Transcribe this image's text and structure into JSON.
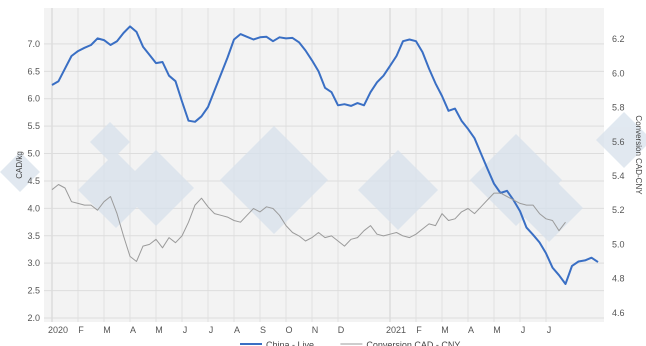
{
  "chart_data": {
    "type": "line",
    "title": "",
    "x_tick_labels": [
      "2020",
      "F",
      "M",
      "A",
      "M",
      "J",
      "J",
      "A",
      "S",
      "O",
      "N",
      "D",
      "2021",
      "F",
      "M",
      "A",
      "M",
      "J",
      "J"
    ],
    "x_range": [
      "2020-01",
      "2021-07"
    ],
    "y_left": {
      "label": "CAD/kg",
      "ticks": [
        "2.0",
        "2.5",
        "3.0",
        "3.5",
        "4.0",
        "4.5",
        "5.0",
        "5.5",
        "6.0",
        "6.5",
        "7.0"
      ],
      "range": [
        2.0,
        7.4
      ]
    },
    "y_right": {
      "label": "Conversion CAD-CNY",
      "ticks": [
        "4.6",
        "4.8",
        "5.0",
        "5.2",
        "5.4",
        "5.6",
        "5.8",
        "6.0",
        "6.2"
      ],
      "range": [
        4.57,
        6.3
      ]
    },
    "grid": true,
    "legend_placement": "bottom",
    "series": [
      {
        "name": "China - Live",
        "axis": "left",
        "color": "#3a6fc4",
        "points": [
          [
            0.0,
            6.25
          ],
          [
            0.25,
            6.32
          ],
          [
            0.5,
            6.55
          ],
          [
            0.75,
            6.78
          ],
          [
            1.0,
            6.87
          ],
          [
            1.25,
            6.93
          ],
          [
            1.5,
            6.98
          ],
          [
            1.75,
            7.1
          ],
          [
            2.0,
            7.07
          ],
          [
            2.25,
            6.98
          ],
          [
            2.5,
            7.05
          ],
          [
            2.75,
            7.2
          ],
          [
            3.0,
            7.32
          ],
          [
            3.25,
            7.22
          ],
          [
            3.5,
            6.95
          ],
          [
            3.75,
            6.8
          ],
          [
            4.0,
            6.65
          ],
          [
            4.25,
            6.67
          ],
          [
            4.5,
            6.42
          ],
          [
            4.75,
            6.32
          ],
          [
            5.0,
            5.95
          ],
          [
            5.25,
            5.6
          ],
          [
            5.5,
            5.58
          ],
          [
            5.75,
            5.68
          ],
          [
            6.0,
            5.85
          ],
          [
            6.25,
            6.15
          ],
          [
            6.5,
            6.45
          ],
          [
            6.75,
            6.75
          ],
          [
            7.0,
            7.08
          ],
          [
            7.25,
            7.18
          ],
          [
            7.5,
            7.13
          ],
          [
            7.75,
            7.08
          ],
          [
            8.0,
            7.12
          ],
          [
            8.25,
            7.13
          ],
          [
            8.5,
            7.05
          ],
          [
            8.75,
            7.12
          ],
          [
            9.0,
            7.1
          ],
          [
            9.25,
            7.11
          ],
          [
            9.5,
            7.03
          ],
          [
            9.75,
            6.88
          ],
          [
            10.0,
            6.7
          ],
          [
            10.25,
            6.5
          ],
          [
            10.5,
            6.2
          ],
          [
            10.75,
            6.12
          ],
          [
            11.0,
            5.88
          ],
          [
            11.25,
            5.9
          ],
          [
            11.5,
            5.87
          ],
          [
            11.75,
            5.92
          ],
          [
            12.0,
            5.88
          ],
          [
            12.25,
            6.12
          ],
          [
            12.5,
            6.3
          ],
          [
            12.75,
            6.42
          ],
          [
            13.0,
            6.6
          ],
          [
            13.25,
            6.78
          ],
          [
            13.5,
            7.05
          ],
          [
            13.75,
            7.08
          ],
          [
            14.0,
            7.05
          ],
          [
            14.25,
            6.85
          ],
          [
            14.5,
            6.55
          ],
          [
            14.75,
            6.28
          ],
          [
            15.0,
            6.05
          ],
          [
            15.25,
            5.78
          ],
          [
            15.5,
            5.82
          ],
          [
            15.75,
            5.6
          ],
          [
            16.0,
            5.45
          ],
          [
            16.25,
            5.28
          ],
          [
            16.5,
            5.0
          ],
          [
            16.75,
            4.72
          ],
          [
            17.0,
            4.45
          ],
          [
            17.25,
            4.28
          ],
          [
            17.5,
            4.32
          ],
          [
            17.75,
            4.15
          ],
          [
            18.0,
            3.95
          ],
          [
            18.25,
            3.65
          ],
          [
            18.5,
            3.52
          ],
          [
            18.75,
            3.38
          ],
          [
            19.0,
            3.18
          ],
          [
            19.25,
            2.92
          ],
          [
            19.5,
            2.78
          ],
          [
            19.75,
            2.62
          ],
          [
            20.0,
            2.95
          ],
          [
            20.25,
            3.03
          ],
          [
            20.5,
            3.05
          ],
          [
            20.75,
            3.1
          ],
          [
            21.0,
            3.02
          ]
        ]
      },
      {
        "name": "Conversion CAD - CNY",
        "axis": "right",
        "color": "#9b9b9b",
        "points": [
          [
            0.0,
            5.32
          ],
          [
            0.25,
            5.35
          ],
          [
            0.5,
            5.33
          ],
          [
            0.75,
            5.25
          ],
          [
            1.0,
            5.24
          ],
          [
            1.25,
            5.23
          ],
          [
            1.5,
            5.23
          ],
          [
            1.75,
            5.2
          ],
          [
            2.0,
            5.25
          ],
          [
            2.25,
            5.28
          ],
          [
            2.5,
            5.18
          ],
          [
            2.75,
            5.05
          ],
          [
            3.0,
            4.93
          ],
          [
            3.25,
            4.9
          ],
          [
            3.5,
            4.99
          ],
          [
            3.75,
            5.0
          ],
          [
            4.0,
            5.03
          ],
          [
            4.25,
            4.98
          ],
          [
            4.5,
            5.04
          ],
          [
            4.75,
            5.01
          ],
          [
            5.0,
            5.05
          ],
          [
            5.25,
            5.13
          ],
          [
            5.5,
            5.23
          ],
          [
            5.75,
            5.27
          ],
          [
            6.0,
            5.22
          ],
          [
            6.25,
            5.18
          ],
          [
            6.5,
            5.17
          ],
          [
            6.75,
            5.16
          ],
          [
            7.0,
            5.14
          ],
          [
            7.25,
            5.13
          ],
          [
            7.5,
            5.17
          ],
          [
            7.75,
            5.21
          ],
          [
            8.0,
            5.19
          ],
          [
            8.25,
            5.22
          ],
          [
            8.5,
            5.21
          ],
          [
            8.75,
            5.17
          ],
          [
            9.0,
            5.11
          ],
          [
            9.25,
            5.07
          ],
          [
            9.5,
            5.05
          ],
          [
            9.75,
            5.02
          ],
          [
            10.0,
            5.04
          ],
          [
            10.25,
            5.07
          ],
          [
            10.5,
            5.04
          ],
          [
            10.75,
            5.05
          ],
          [
            11.0,
            5.02
          ],
          [
            11.25,
            4.99
          ],
          [
            11.5,
            5.03
          ],
          [
            11.75,
            5.04
          ],
          [
            12.0,
            5.08
          ],
          [
            12.25,
            5.11
          ],
          [
            12.5,
            5.06
          ],
          [
            12.75,
            5.05
          ],
          [
            13.0,
            5.06
          ],
          [
            13.25,
            5.07
          ],
          [
            13.5,
            5.05
          ],
          [
            13.75,
            5.04
          ],
          [
            14.0,
            5.06
          ],
          [
            14.25,
            5.09
          ],
          [
            14.5,
            5.12
          ],
          [
            14.75,
            5.11
          ],
          [
            15.0,
            5.18
          ],
          [
            15.25,
            5.14
          ],
          [
            15.5,
            5.15
          ],
          [
            15.75,
            5.19
          ],
          [
            16.0,
            5.21
          ],
          [
            16.25,
            5.18
          ],
          [
            16.5,
            5.22
          ],
          [
            16.75,
            5.26
          ],
          [
            17.0,
            5.3
          ],
          [
            17.25,
            5.3
          ],
          [
            17.5,
            5.28
          ],
          [
            17.75,
            5.26
          ],
          [
            18.0,
            5.24
          ],
          [
            18.25,
            5.23
          ],
          [
            18.5,
            5.23
          ],
          [
            18.75,
            5.18
          ],
          [
            19.0,
            5.15
          ],
          [
            19.25,
            5.14
          ],
          [
            19.5,
            5.08
          ],
          [
            19.75,
            5.13
          ]
        ]
      }
    ]
  }
}
